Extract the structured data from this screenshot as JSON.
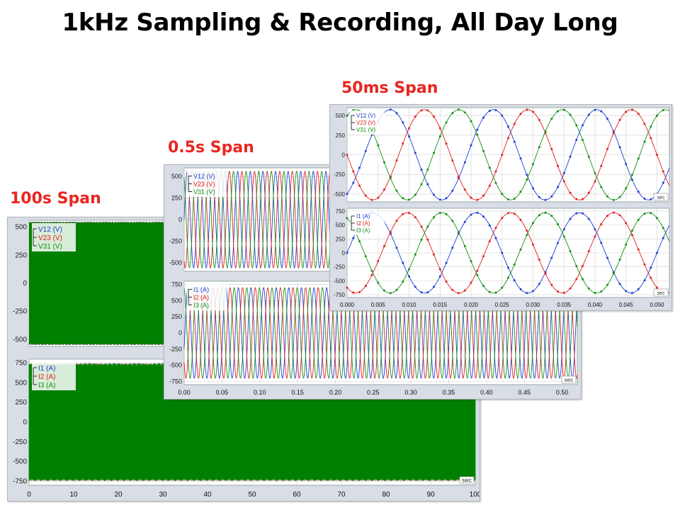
{
  "title": "1kHz Sampling & Recording, All Day Long",
  "colors": {
    "label": "#e8261f",
    "v12": "#1f3fd4",
    "v23": "#e02020",
    "v31": "#169016",
    "i_fill": "#008000",
    "grid": "#d0d0d0",
    "plot_bg": "#ffffff",
    "frame_bg": "#d8dde6"
  },
  "panels": [
    {
      "label": "100s Span",
      "unit_tag": "sec",
      "chart_data": [
        {
          "type": "line",
          "x_unit": "sec",
          "xlim": [
            0,
            100
          ],
          "x_ticks": [
            0,
            10,
            20,
            30,
            40,
            50,
            60,
            70,
            80,
            90,
            100
          ],
          "ylim": [
            -560,
            560
          ],
          "y_ticks": [
            500,
            250,
            0,
            -250,
            -500
          ],
          "series": [
            {
              "name": "V12 (V)",
              "amplitude": 550,
              "phase_deg": 0
            },
            {
              "name": "V23 (V)",
              "amplitude": 550,
              "phase_deg": -120
            },
            {
              "name": "V31 (V)",
              "amplitude": 550,
              "phase_deg": 120
            }
          ]
        },
        {
          "type": "line",
          "x_unit": "sec",
          "xlim": [
            0,
            100
          ],
          "x_ticks": [
            0,
            10,
            20,
            30,
            40,
            50,
            60,
            70,
            80,
            90,
            100
          ],
          "ylim": [
            -800,
            800
          ],
          "y_ticks": [
            750,
            500,
            250,
            0,
            -250,
            -500,
            -750
          ],
          "series": [
            {
              "name": "I1 (A)",
              "amplitude": 730,
              "phase_deg": 0
            },
            {
              "name": "I2 (A)",
              "amplitude": 730,
              "phase_deg": -120
            },
            {
              "name": "I3 (A)",
              "amplitude": 730,
              "phase_deg": 120
            }
          ]
        }
      ]
    },
    {
      "label": "0.5s Span",
      "unit_tag": "sec",
      "chart_data": [
        {
          "type": "line",
          "x_unit": "sec",
          "xlim": [
            0,
            0.52
          ],
          "x_ticks": [
            "0.00",
            "0.05",
            "0.10",
            "0.15",
            "0.20",
            "0.25",
            "0.30",
            "0.35",
            "0.40",
            "0.45",
            "0.50"
          ],
          "ylim": [
            -600,
            600
          ],
          "y_ticks": [
            500,
            250,
            0,
            -250,
            -500
          ],
          "series": [
            {
              "name": "V12 (V)",
              "amplitude": 560,
              "frequency_hz": 60,
              "phase_deg": 0
            },
            {
              "name": "V23 (V)",
              "amplitude": 560,
              "frequency_hz": 60,
              "phase_deg": -120
            },
            {
              "name": "V31 (V)",
              "amplitude": 560,
              "frequency_hz": 60,
              "phase_deg": 120
            }
          ]
        },
        {
          "type": "line",
          "x_unit": "sec",
          "xlim": [
            0,
            0.52
          ],
          "x_ticks": [
            "0.00",
            "0.05",
            "0.10",
            "0.15",
            "0.20",
            "0.25",
            "0.30",
            "0.35",
            "0.40",
            "0.45",
            "0.50"
          ],
          "ylim": [
            -800,
            800
          ],
          "y_ticks": [
            750,
            500,
            250,
            0,
            -250,
            -500,
            -750
          ],
          "series": [
            {
              "name": "I1 (A)",
              "amplitude": 700,
              "frequency_hz": 60,
              "phase_deg": -20
            },
            {
              "name": "I2 (A)",
              "amplitude": 700,
              "frequency_hz": 60,
              "phase_deg": -140
            },
            {
              "name": "I3 (A)",
              "amplitude": 700,
              "frequency_hz": 60,
              "phase_deg": 100
            }
          ]
        }
      ]
    },
    {
      "label": "50ms Span",
      "unit_tag": "sec",
      "chart_data": [
        {
          "type": "line",
          "x_unit": "sec",
          "xlim": [
            0,
            0.052
          ],
          "x_ticks": [
            "0.000",
            "0.005",
            "0.010",
            "0.015",
            "0.020",
            "0.025",
            "0.030",
            "0.035",
            "0.040",
            "0.045",
            "0.050"
          ],
          "ylim": [
            -600,
            600
          ],
          "y_ticks": [
            500,
            250,
            0,
            -250,
            -500
          ],
          "series": [
            {
              "name": "V12 (V)",
              "amplitude": 575,
              "frequency_hz": 60,
              "phase_deg": -60
            },
            {
              "name": "V23 (V)",
              "amplitude": 575,
              "frequency_hz": 60,
              "phase_deg": 180
            },
            {
              "name": "V31 (V)",
              "amplitude": 575,
              "frequency_hz": 60,
              "phase_deg": 60
            }
          ]
        },
        {
          "type": "line",
          "x_unit": "sec",
          "xlim": [
            0,
            0.052
          ],
          "x_ticks": [
            "0.000",
            "0.005",
            "0.010",
            "0.015",
            "0.020",
            "0.025",
            "0.030",
            "0.035",
            "0.040",
            "0.045",
            "0.050"
          ],
          "ylim": [
            -800,
            800
          ],
          "y_ticks": [
            750,
            500,
            250,
            0,
            -250,
            -500,
            -750
          ],
          "series": [
            {
              "name": "I1 (A)",
              "amplitude": 720,
              "frequency_hz": 60,
              "phase_deg": 0
            },
            {
              "name": "I2 (A)",
              "amplitude": 720,
              "frequency_hz": 60,
              "phase_deg": -120
            },
            {
              "name": "I3 (A)",
              "amplitude": 720,
              "frequency_hz": 60,
              "phase_deg": 120
            }
          ]
        }
      ]
    }
  ]
}
